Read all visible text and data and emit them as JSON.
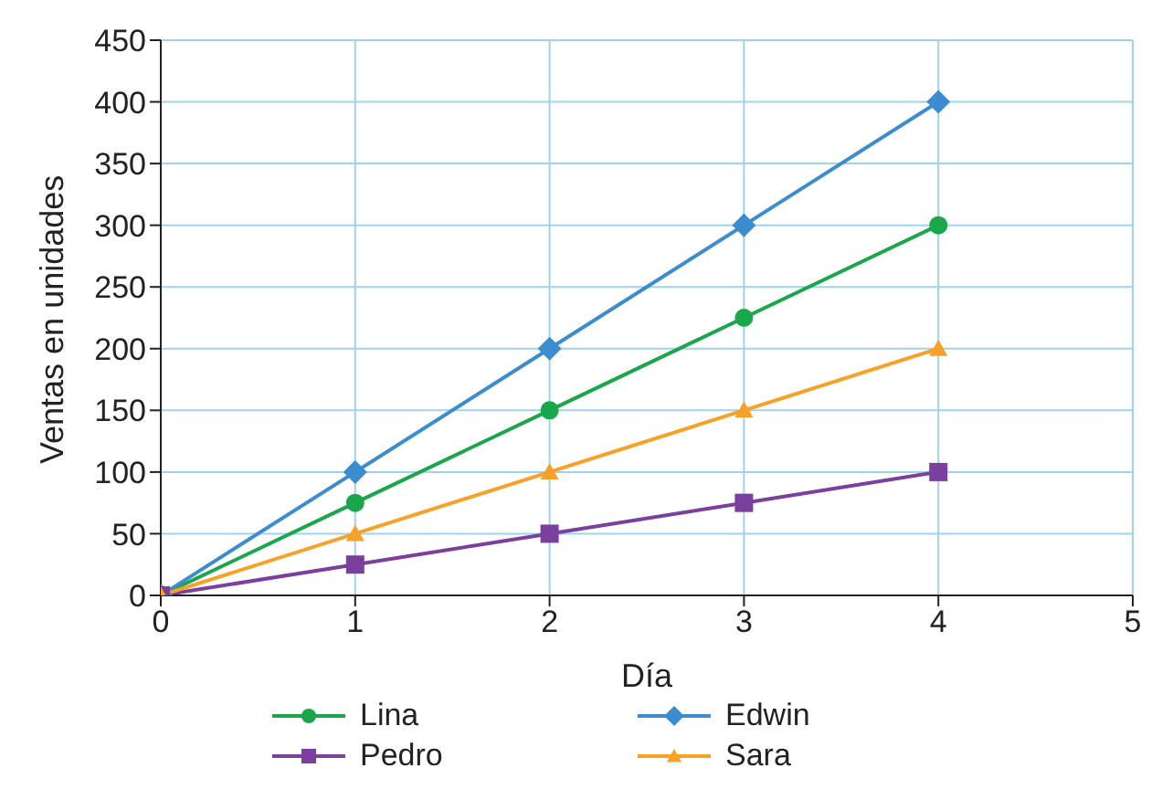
{
  "chart_data": {
    "type": "line",
    "xlabel": "Día",
    "ylabel": "Ventas en unidades",
    "x": [
      0,
      1,
      2,
      3,
      4
    ],
    "series": [
      {
        "name": "Lina",
        "color": "#1aa64a",
        "values": [
          0,
          75,
          150,
          225,
          300
        ],
        "marker": "circle"
      },
      {
        "name": "Edwin",
        "color": "#3c8dd0",
        "values": [
          0,
          100,
          200,
          300,
          400
        ],
        "marker": "diamond"
      },
      {
        "name": "Pedro",
        "color": "#7b3f9e",
        "values": [
          0,
          25,
          50,
          75,
          100
        ],
        "marker": "square"
      },
      {
        "name": "Sara",
        "color": "#f7a128",
        "values": [
          0,
          50,
          100,
          150,
          200
        ],
        "marker": "triangle"
      }
    ],
    "xlim": [
      0,
      5
    ],
    "xticks": [
      0,
      1,
      2,
      3,
      4,
      5
    ],
    "ylim": [
      0,
      450
    ],
    "yticks": [
      0,
      50,
      100,
      150,
      200,
      250,
      300,
      350,
      400,
      450
    ],
    "grid": true,
    "legend": "bottom"
  }
}
